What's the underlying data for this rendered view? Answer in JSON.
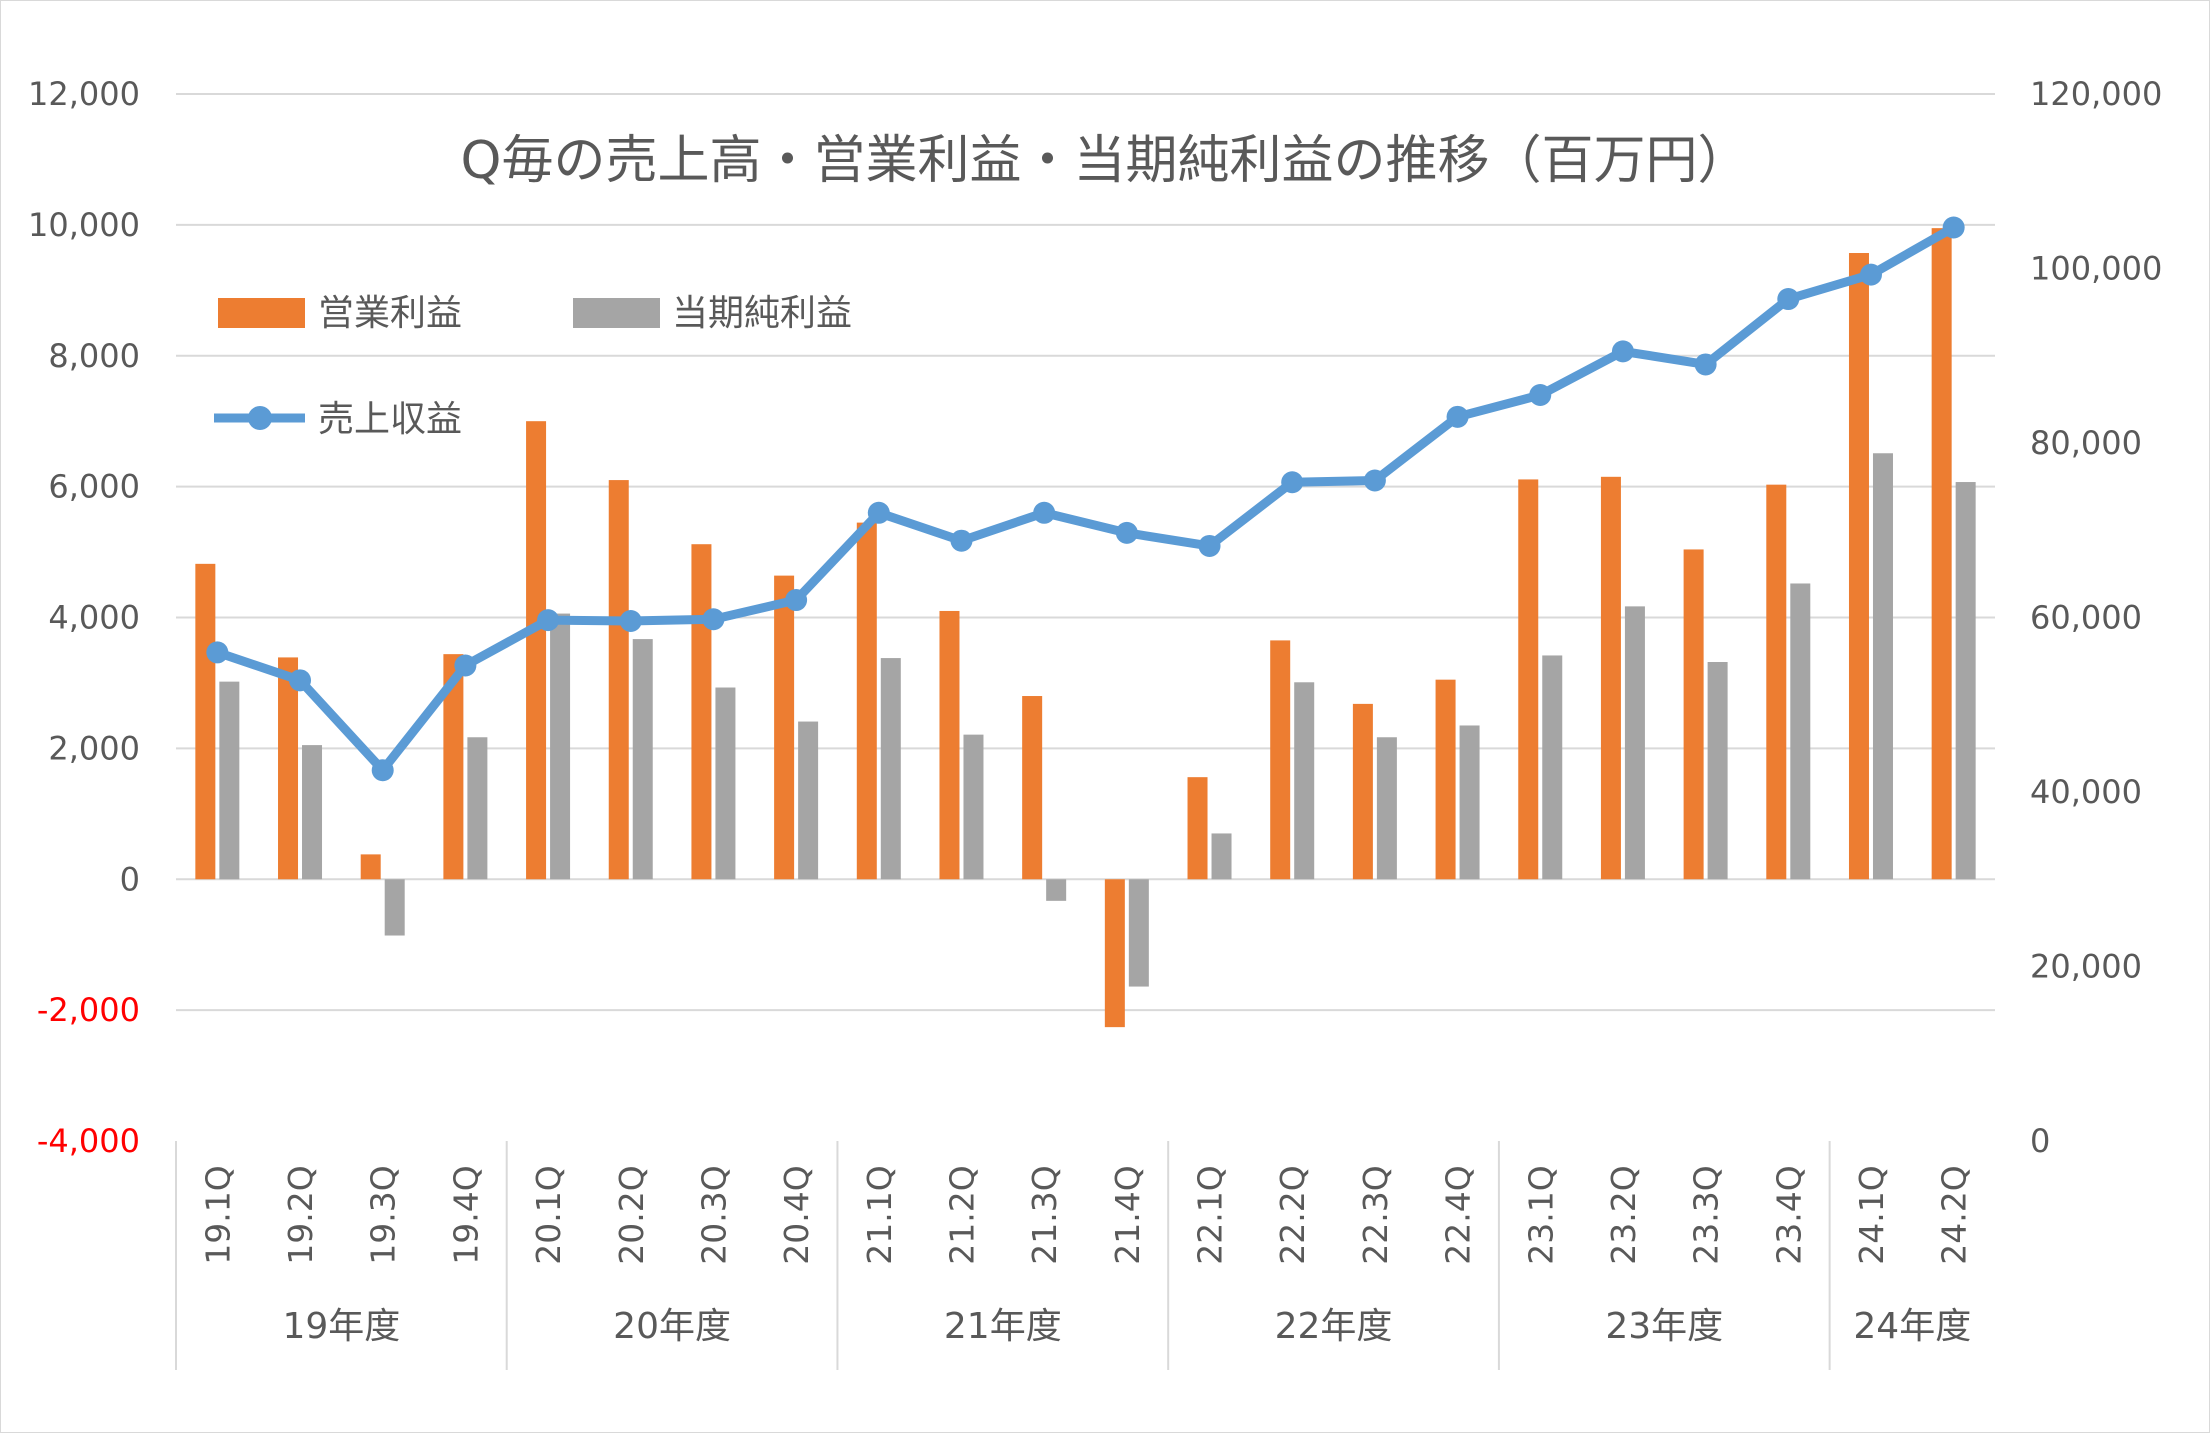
{
  "chart_data": {
    "type": "bar",
    "combo": "bar + line (secondary axis)",
    "title": "Q毎の売上高・営業利益・当期純利益の推移（百万円）",
    "categories": [
      "19.1Q",
      "19.2Q",
      "19.3Q",
      "19.4Q",
      "20.1Q",
      "20.2Q",
      "20.3Q",
      "20.4Q",
      "21.1Q",
      "21.2Q",
      "21.3Q",
      "21.4Q",
      "22.1Q",
      "22.2Q",
      "22.3Q",
      "22.4Q",
      "23.1Q",
      "23.2Q",
      "23.3Q",
      "23.4Q",
      "24.1Q",
      "24.2Q"
    ],
    "category_groups": [
      {
        "label": "19年度",
        "count": 4
      },
      {
        "label": "20年度",
        "count": 4
      },
      {
        "label": "21年度",
        "count": 4
      },
      {
        "label": "22年度",
        "count": 4
      },
      {
        "label": "23年度",
        "count": 4
      },
      {
        "label": "24年度",
        "count": 2
      }
    ],
    "series": [
      {
        "name": "営業利益",
        "type": "bar",
        "axis": "left",
        "color": "#ed7d31",
        "values": [
          4820,
          3390,
          380,
          3440,
          7000,
          6100,
          5120,
          4640,
          5450,
          4100,
          2800,
          -2260,
          1560,
          3650,
          2680,
          3050,
          6110,
          6150,
          5040,
          6030,
          9570,
          9950
        ]
      },
      {
        "name": "当期純利益",
        "type": "bar",
        "axis": "left",
        "color": "#a5a5a5",
        "values": [
          3020,
          2050,
          -860,
          2170,
          4060,
          3670,
          2930,
          2410,
          3380,
          2210,
          -330,
          -1640,
          700,
          3010,
          2170,
          2350,
          3420,
          4170,
          3320,
          4520,
          6510,
          6070
        ]
      },
      {
        "name": "売上収益",
        "type": "line",
        "axis": "right",
        "color": "#5b9bd5",
        "values": [
          56000,
          52800,
          42500,
          54500,
          59700,
          59600,
          59800,
          62000,
          72000,
          68800,
          72000,
          69700,
          68200,
          75500,
          75700,
          83000,
          85500,
          90500,
          89000,
          96500,
          99300,
          104700
        ]
      }
    ],
    "y_left": {
      "min": -4000,
      "max": 12000,
      "step": 2000,
      "ticks": [
        "-4,000",
        "-2,000",
        "0",
        "2,000",
        "4,000",
        "6,000",
        "8,000",
        "10,000",
        "12,000"
      ],
      "negative_color": "#ff0000"
    },
    "y_right": {
      "min": 0,
      "max": 120000,
      "step": 20000,
      "ticks": [
        "0",
        "20,000",
        "40,000",
        "60,000",
        "80,000",
        "100,000",
        "120,000"
      ]
    },
    "grid": true,
    "legend_position": "top-left inside plot"
  }
}
